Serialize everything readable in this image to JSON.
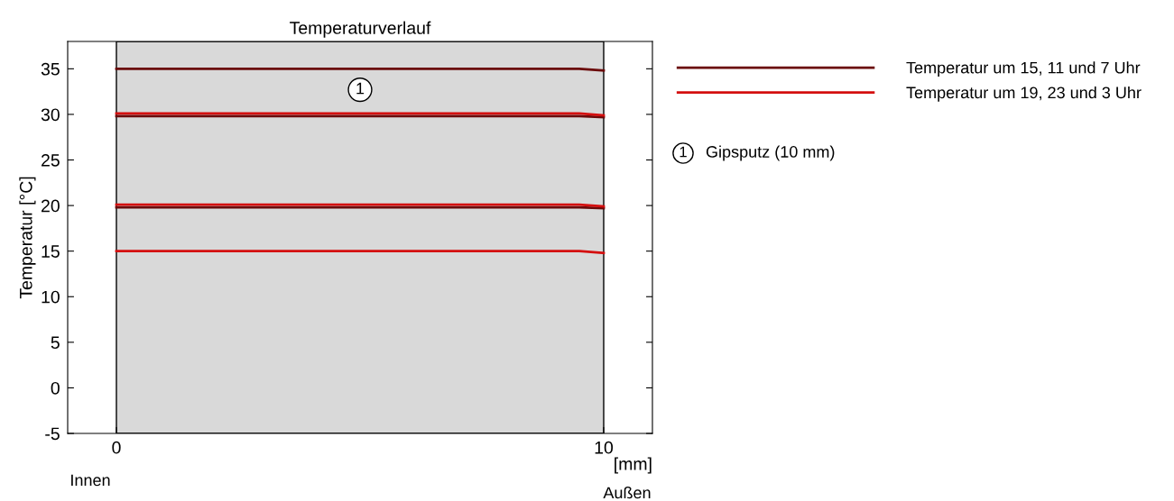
{
  "chart_data": {
    "type": "line",
    "title": "Temperaturverlauf",
    "xlabel": "[mm]",
    "ylabel": "Temperatur [°C]",
    "x": [
      0,
      8,
      9.5,
      10
    ],
    "series": [
      {
        "name": "Temperatur um 15, 11 und 7 Uhr",
        "color": "#6b0a0a",
        "values": [
          35.0,
          35.0,
          35.0,
          34.8
        ]
      },
      {
        "color": "#6b0a0a",
        "values": [
          29.8,
          29.8,
          29.8,
          29.7
        ]
      },
      {
        "color": "#6b0a0a",
        "values": [
          19.8,
          19.8,
          19.8,
          19.7
        ]
      },
      {
        "name": "Temperatur um 19, 23 und 3 Uhr",
        "color": "#d40f0f",
        "values": [
          30.1,
          30.1,
          30.1,
          29.9
        ]
      },
      {
        "color": "#d40f0f",
        "values": [
          20.1,
          20.1,
          20.1,
          19.9
        ]
      },
      {
        "color": "#d40f0f",
        "values": [
          15.0,
          15.0,
          15.0,
          14.8
        ]
      }
    ],
    "xlim": [
      -1,
      11
    ],
    "xticks": [
      0,
      10
    ],
    "ylim": [
      -5,
      38
    ],
    "yticks": [
      -5,
      0,
      5,
      10,
      15,
      20,
      25,
      30,
      35
    ],
    "bands": [
      {
        "axis": "x",
        "from": 0,
        "to": 10,
        "label": "1",
        "color": "#d9d9d9"
      }
    ],
    "annotations": [
      "Innen",
      "Außen",
      "Gipsputz (10 mm)"
    ],
    "legend": "top right",
    "grid": false,
    "marker": "none",
    "line_style": "solid"
  }
}
